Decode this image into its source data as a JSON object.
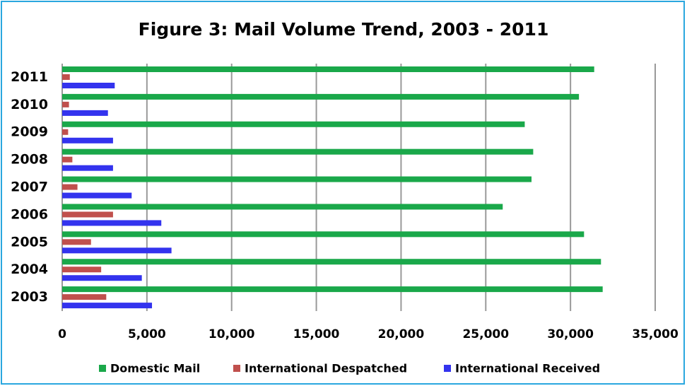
{
  "chart_data": {
    "type": "bar",
    "orientation": "horizontal",
    "title": "Figure 3: Mail Volume Trend, 2003 - 2011",
    "categories": [
      "2003",
      "2004",
      "2005",
      "2006",
      "2007",
      "2008",
      "2009",
      "2010",
      "2011"
    ],
    "series": [
      {
        "name": "Domestic Mail",
        "color": "#1aa84a",
        "values": [
          31900,
          31800,
          30800,
          26000,
          27700,
          27800,
          27300,
          30500,
          31400
        ]
      },
      {
        "name": "International Despatched",
        "color": "#c0504d",
        "values": [
          2600,
          2300,
          1700,
          3000,
          900,
          600,
          350,
          400,
          450
        ]
      },
      {
        "name": "International Received",
        "color": "#3333ee",
        "values": [
          5300,
          4700,
          6450,
          5850,
          4100,
          3000,
          3000,
          2700,
          3100
        ]
      }
    ],
    "xlim": [
      0,
      35000
    ],
    "xticks": [
      0,
      {
        "value": 5000,
        "label": "5,000"
      },
      {
        "value": 10000,
        "label": "10,000"
      },
      {
        "value": 15000,
        "label": "15,000"
      },
      {
        "value": 20000,
        "label": "20,000"
      },
      {
        "value": 25000,
        "label": "25,000"
      },
      {
        "value": 30000,
        "label": "30,000"
      },
      {
        "value": 35000,
        "label": "35,000"
      }
    ],
    "grid": true,
    "legend": "bottom"
  }
}
